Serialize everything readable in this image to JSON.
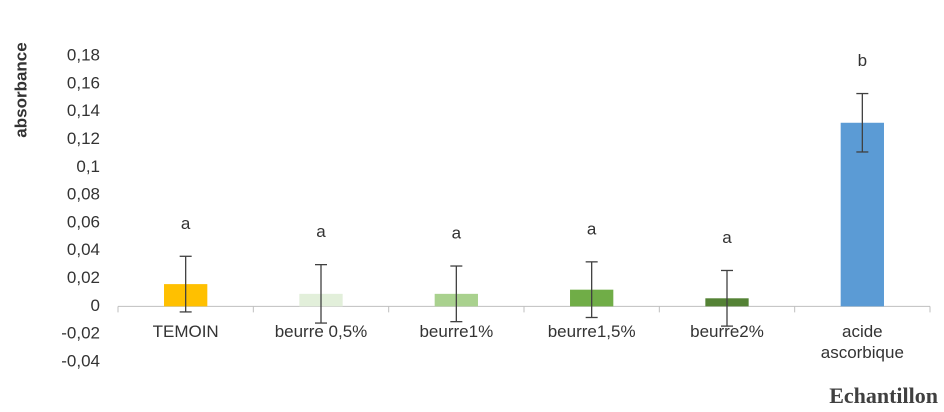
{
  "chart_data": {
    "type": "bar",
    "y_label": "absorbance",
    "x_label": "Echantillon",
    "categories": [
      "TEMOIN",
      "beurre 0,5%",
      "beurre1%",
      "beurre1,5%",
      "beurre2%",
      "acide ascorbique"
    ],
    "values": [
      0.016,
      0.009,
      0.009,
      0.012,
      0.0058,
      0.132
    ],
    "errors": [
      0.02,
      0.021,
      0.02,
      0.02,
      0.02,
      0.021
    ],
    "annotations": [
      "a",
      "a",
      "a",
      "a",
      "a",
      "b"
    ],
    "colors": [
      "#ffc000",
      "#e2efda",
      "#a9d18e",
      "#70ad47",
      "#548235",
      "#5b9bd5"
    ],
    "ylim": [
      -0.04,
      0.18
    ],
    "yticks": [
      {
        "value": -0.04,
        "label": "-0,04"
      },
      {
        "value": -0.02,
        "label": "-0,02"
      },
      0,
      {
        "value": 0.02,
        "label": "0,02"
      },
      {
        "value": 0.04,
        "label": "0,04"
      },
      {
        "value": 0.06,
        "label": "0,06"
      },
      {
        "value": 0.08,
        "label": "0,08"
      },
      {
        "value": 0.1,
        "label": "0,1"
      },
      {
        "value": 0.12,
        "label": "0,12"
      },
      {
        "value": 0.14,
        "label": "0,14"
      },
      {
        "value": 0.16,
        "label": "0,16"
      },
      {
        "value": 0.18,
        "label": "0,18"
      }
    ],
    "grid": false
  }
}
